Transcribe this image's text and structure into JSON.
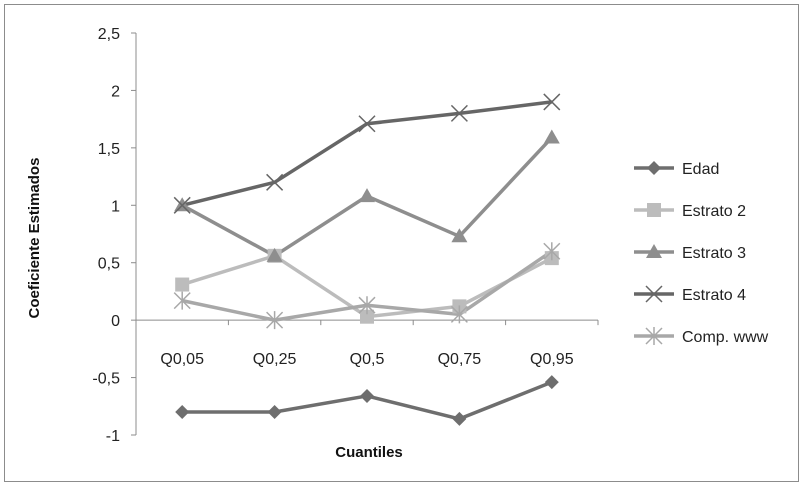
{
  "chart_data": {
    "type": "line",
    "title": "",
    "xlabel": "Cuantiles",
    "ylabel": "Coeficiente Estimados",
    "categories": [
      "Q0,05",
      "Q0,25",
      "Q0,5",
      "Q0,75",
      "Q0,95"
    ],
    "ylim": [
      -1,
      2.5
    ],
    "yticks": [
      "2,5",
      "2",
      "1,5",
      "1",
      "0,5",
      "0",
      "-0,5",
      "-1"
    ],
    "ytick_values": [
      2.5,
      2,
      1.5,
      1,
      0.5,
      0,
      -0.5,
      -1
    ],
    "grid": false,
    "legend_position": "right",
    "series": [
      {
        "name": "Edad",
        "values": [
          -0.8,
          -0.8,
          -0.66,
          -0.86,
          -0.54
        ],
        "color": "#6e6e6e",
        "marker": "diamond"
      },
      {
        "name": "Estrato 2",
        "values": [
          0.31,
          0.56,
          0.03,
          0.12,
          0.54
        ],
        "color": "#bcbcbc",
        "marker": "square"
      },
      {
        "name": "Estrato 3",
        "values": [
          1.0,
          0.56,
          1.08,
          0.73,
          1.59
        ],
        "color": "#8e8e8e",
        "marker": "triangle"
      },
      {
        "name": "Estrato 4",
        "values": [
          1.0,
          1.2,
          1.71,
          1.8,
          1.9
        ],
        "color": "#666666",
        "marker": "x"
      },
      {
        "name": "Comp. www",
        "values": [
          0.17,
          0.0,
          0.13,
          0.05,
          0.6
        ],
        "color": "#a8a8a8",
        "marker": "star"
      }
    ]
  }
}
